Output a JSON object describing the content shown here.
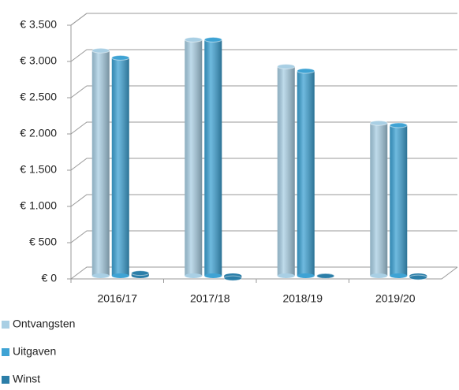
{
  "chart_data": {
    "type": "bar3d",
    "categories": [
      "2016/17",
      "2017/18",
      "2018/19",
      "2019/20"
    ],
    "series": [
      {
        "name": "Ontvangsten",
        "color": "#a9cfe4",
        "values": [
          3150,
          3300,
          2930,
          2150
        ]
      },
      {
        "name": "Uitgaven",
        "color": "#3fa3d4",
        "values": [
          3050,
          3300,
          2870,
          2120
        ]
      },
      {
        "name": "Winst",
        "color": "#2b7ea8",
        "values": [
          80,
          10,
          40,
          20
        ]
      }
    ],
    "ylim": [
      0,
      3500
    ],
    "yticks": [
      {
        "value": 0,
        "label": "€ 0"
      },
      {
        "value": 500,
        "label": "€ 500"
      },
      {
        "value": 1000,
        "label": "€ 1.000"
      },
      {
        "value": 1500,
        "label": "€ 1.500"
      },
      {
        "value": 2000,
        "label": "€ 2.000"
      },
      {
        "value": 2500,
        "label": "€ 2.500"
      },
      {
        "value": 3000,
        "label": "€ 3.000"
      },
      {
        "value": 3500,
        "label": "€ 3.500"
      }
    ],
    "grid": true,
    "legend": "bottom-left"
  }
}
